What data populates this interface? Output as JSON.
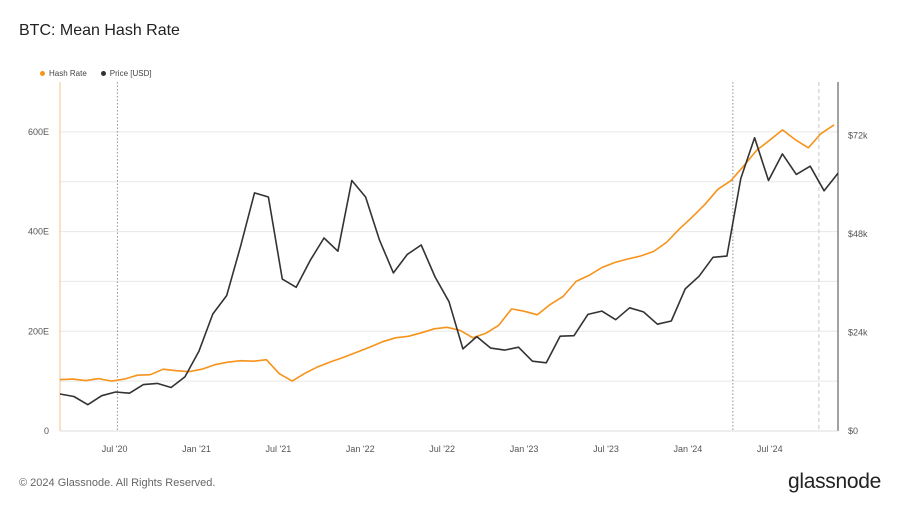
{
  "title": "BTC: Mean Hash Rate",
  "footer": "© 2024 Glassnode. All Rights Reserved.",
  "logo": "glassnode",
  "colors": {
    "hash_rate": "#f7931a",
    "price": "#333333"
  },
  "chart_data": {
    "type": "line",
    "x_ticks": [
      "Jul '20",
      "Jan '21",
      "Jul '21",
      "Jan '22",
      "Jul '22",
      "Jan '23",
      "Jul '23",
      "Jan '24",
      "Jul '24"
    ],
    "y_left": {
      "ticks": [
        "0",
        "200E",
        "400E",
        "600E"
      ],
      "range": [
        0,
        700
      ]
    },
    "y_right": {
      "ticks": [
        "$0",
        "$24k",
        "$48k",
        "$72k"
      ],
      "range": [
        0,
        85000
      ]
    },
    "legend_position": "top-left",
    "grid": "horizontal",
    "series": [
      {
        "name": "Hash Rate",
        "axis": "left",
        "color": "#f7931a",
        "values": [
          103,
          104,
          101,
          105,
          100,
          104,
          112,
          113,
          124,
          121,
          119,
          124,
          133,
          138,
          141,
          140,
          143,
          115,
          100,
          116,
          129,
          139,
          148,
          158,
          168,
          179,
          187,
          190,
          197,
          205,
          208,
          202,
          187,
          196,
          212,
          245,
          240,
          233,
          254,
          270,
          300,
          312,
          328,
          338,
          345,
          351,
          360,
          378,
          405,
          429,
          455,
          485,
          502,
          532,
          563,
          583,
          604,
          584,
          568,
          597,
          614
        ]
      },
      {
        "name": "Price [USD]",
        "axis": "right",
        "color": "#333333",
        "values": [
          9000,
          8400,
          6400,
          8600,
          9500,
          9200,
          11300,
          11600,
          10600,
          13200,
          19400,
          28500,
          33000,
          45000,
          58000,
          57000,
          37000,
          35000,
          41500,
          47000,
          43800,
          61000,
          57000,
          46500,
          38500,
          43000,
          45300,
          37500,
          31500,
          20000,
          23000,
          20200,
          19700,
          20400,
          17000,
          16600,
          23100,
          23200,
          28400,
          29200,
          27100,
          30000,
          29000,
          26000,
          26800,
          34600,
          37700,
          42300,
          42600,
          61500,
          71400,
          61000,
          67500,
          62500,
          64500,
          58500,
          62800
        ]
      }
    ]
  }
}
